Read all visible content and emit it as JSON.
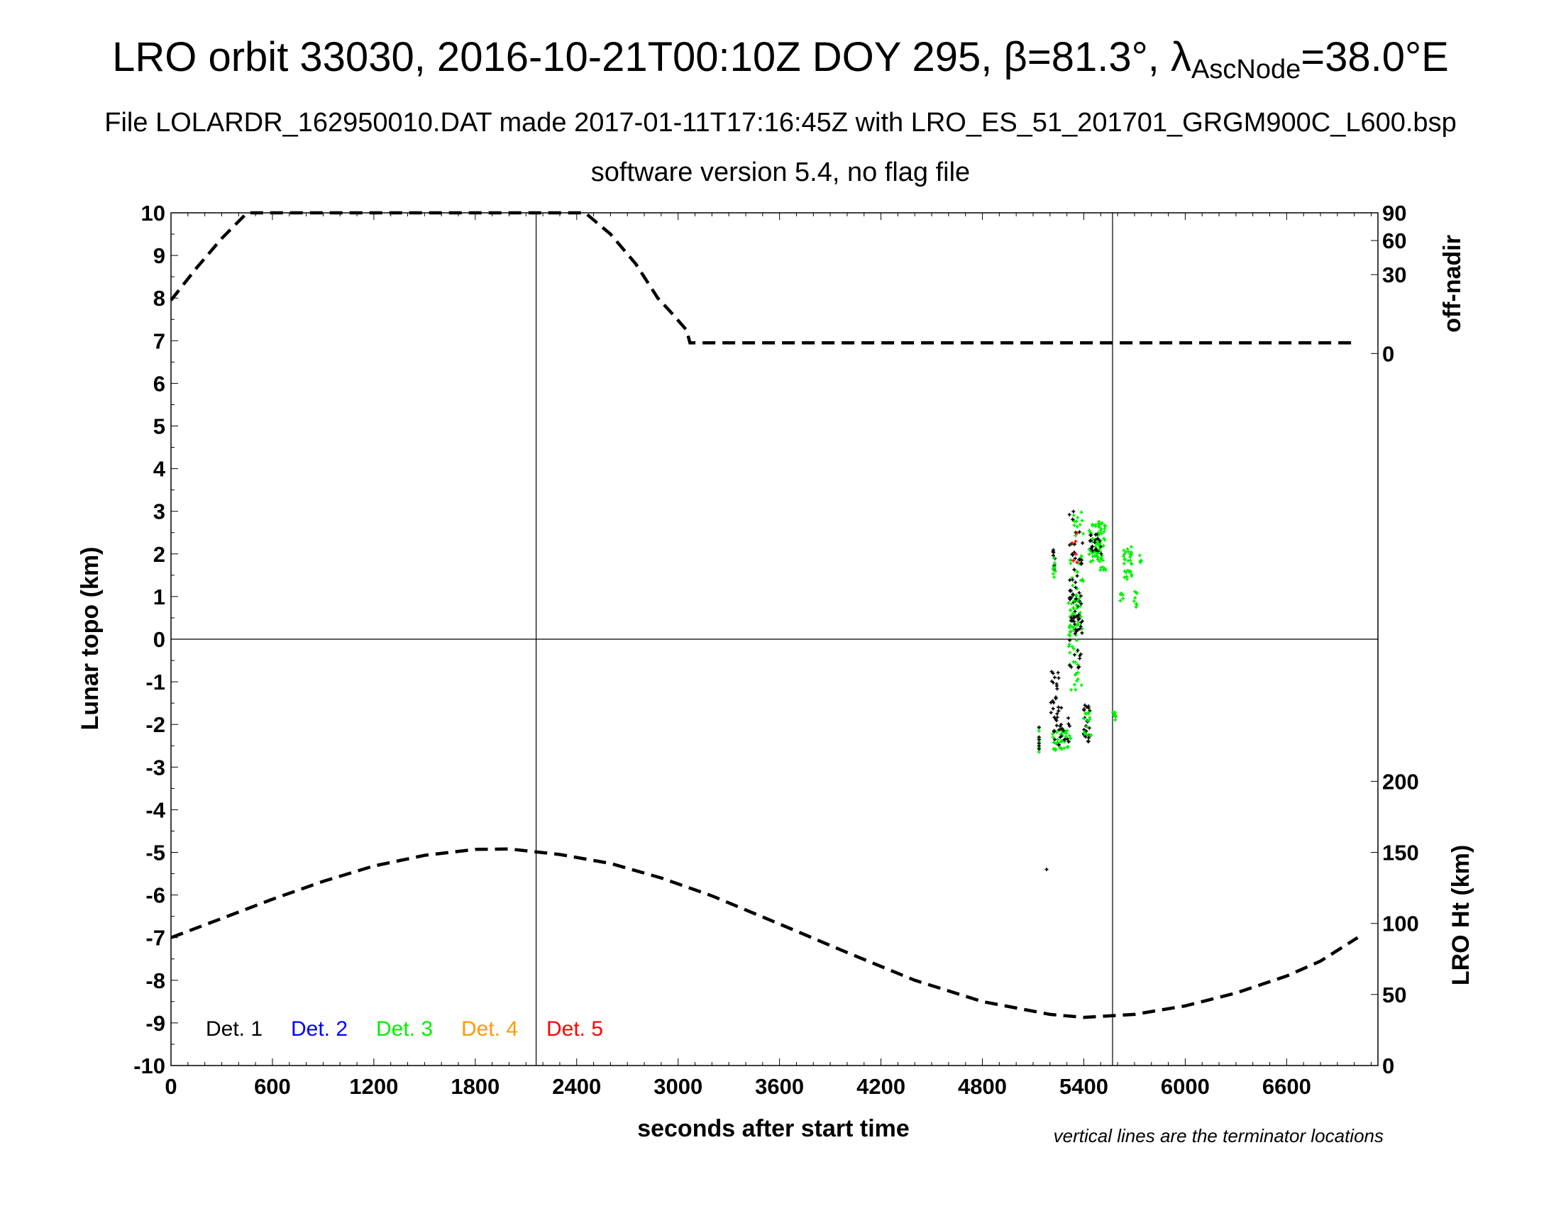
{
  "chart_data": {
    "type": "scatter",
    "title_prefix": "LRO orbit 33030, 2016-10-21T00:10Z DOY 295, ",
    "title_beta": "β=81.3°, ",
    "title_lambda": "λ",
    "title_lambda_sub": "AscNode",
    "title_lambda_value": "=38.0°E",
    "subtitle_1": "File LOLARDR_162950010.DAT made 2017-01-11T17:16:45Z with LRO_ES_51_201701_GRGM900C_L600.bsp",
    "subtitle_2": "software version 5.4, no flag file",
    "xlabel": "seconds after start time",
    "ylabel_left": "Lunar topo (km)",
    "ylabel_right_top": "off-nadir",
    "ylabel_right_bottom": "LRO Ht (km)",
    "note": "vertical lines are the terminator locations",
    "xlim": [
      0,
      7140
    ],
    "ylim": [
      -10,
      10
    ],
    "x_ticks": [
      "0",
      "600",
      "1200",
      "1800",
      "2400",
      "3000",
      "3600",
      "4200",
      "4800",
      "5400",
      "6000",
      "6600"
    ],
    "y_ticks": [
      "-10",
      "-9",
      "-8",
      "-7",
      "-6",
      "-5",
      "-4",
      "-3",
      "-2",
      "-1",
      "0",
      "1",
      "2",
      "3",
      "4",
      "5",
      "6",
      "7",
      "8",
      "9",
      "10"
    ],
    "off_nadir_ticks": [
      {
        "label": "90",
        "value": 90
      },
      {
        "label": "60",
        "value": 60
      },
      {
        "label": "30",
        "value": 30
      },
      {
        "label": "0",
        "value": 0
      }
    ],
    "lro_ht_ticks": [
      {
        "label": "200",
        "value": 200
      },
      {
        "label": "150",
        "value": 150
      },
      {
        "label": "100",
        "value": 100
      },
      {
        "label": "50",
        "value": 50
      },
      {
        "label": "0",
        "value": 0
      }
    ],
    "terminator_x": [
      2160,
      5570
    ],
    "legend": [
      {
        "label": "Det. 1",
        "color": "#000000"
      },
      {
        "label": "Det. 2",
        "color": "#0000ff"
      },
      {
        "label": "Det. 3",
        "color": "#00ee00"
      },
      {
        "label": "Det. 4",
        "color": "#ff9900"
      },
      {
        "label": "Det. 5",
        "color": "#ff0000"
      }
    ],
    "off_nadir_curve": [
      [
        0,
        7.95
      ],
      [
        150,
        8.7
      ],
      [
        300,
        9.4
      ],
      [
        450,
        10.0
      ],
      [
        2450,
        10.0
      ],
      [
        2600,
        9.5
      ],
      [
        2750,
        8.8
      ],
      [
        2880,
        8.0
      ],
      [
        2950,
        7.7
      ],
      [
        3050,
        7.25
      ],
      [
        3070,
        6.95
      ],
      [
        7020,
        6.95
      ]
    ],
    "lro_ht_curve": [
      [
        0,
        -7.0
      ],
      [
        300,
        -6.55
      ],
      [
        600,
        -6.1
      ],
      [
        900,
        -5.68
      ],
      [
        1200,
        -5.32
      ],
      [
        1500,
        -5.07
      ],
      [
        1800,
        -4.93
      ],
      [
        2000,
        -4.92
      ],
      [
        2300,
        -5.05
      ],
      [
        2600,
        -5.26
      ],
      [
        2900,
        -5.6
      ],
      [
        3200,
        -6.02
      ],
      [
        3600,
        -6.68
      ],
      [
        4000,
        -7.35
      ],
      [
        4400,
        -8.0
      ],
      [
        4800,
        -8.5
      ],
      [
        5200,
        -8.8
      ],
      [
        5400,
        -8.87
      ],
      [
        5700,
        -8.8
      ],
      [
        6000,
        -8.6
      ],
      [
        6300,
        -8.3
      ],
      [
        6600,
        -7.9
      ],
      [
        6800,
        -7.55
      ],
      [
        7020,
        -7.0
      ]
    ],
    "detections": {
      "clusters": [
        {
          "x": 5135,
          "x_spread": 0,
          "y_min": -2.7,
          "y_max": -2.0,
          "n": 10,
          "color": "#00ee00"
        },
        {
          "x": 5135,
          "x_spread": 0,
          "y_min": -2.6,
          "y_max": -2.05,
          "n": 6,
          "color": "#000000"
        },
        {
          "x": 5225,
          "x_spread": 8,
          "y_min": 1.5,
          "y_max": 2.1,
          "n": 10,
          "color": "#000000"
        },
        {
          "x": 5225,
          "x_spread": 8,
          "y_min": 1.4,
          "y_max": 2.0,
          "n": 8,
          "color": "#00ee00"
        },
        {
          "x": 5230,
          "x_spread": 25,
          "y_min": -1.9,
          "y_max": -0.75,
          "n": 20,
          "color": "#000000"
        },
        {
          "x": 5270,
          "x_spread": 55,
          "y_min": -2.6,
          "y_max": -2.1,
          "n": 40,
          "color": "#00ee00"
        },
        {
          "x": 5270,
          "x_spread": 50,
          "y_min": -2.5,
          "y_max": -1.6,
          "n": 25,
          "color": "#000000"
        },
        {
          "x": 5355,
          "x_spread": 45,
          "y_min": -1.2,
          "y_max": 3.0,
          "n": 70,
          "color": "#00ee00"
        },
        {
          "x": 5355,
          "x_spread": 40,
          "y_min": -0.7,
          "y_max": 3.0,
          "n": 55,
          "color": "#000000"
        },
        {
          "x": 5350,
          "x_spread": 35,
          "y_min": 0.3,
          "y_max": 1.1,
          "n": 25,
          "color": "#000000"
        },
        {
          "x": 5350,
          "x_spread": 35,
          "y_min": 0.2,
          "y_max": 1.0,
          "n": 20,
          "color": "#00ee00"
        },
        {
          "x": 5345,
          "x_spread": 15,
          "y_min": 1.8,
          "y_max": 2.5,
          "n": 6,
          "color": "#ff0000"
        },
        {
          "x": 5420,
          "x_spread": 25,
          "y_min": -2.4,
          "y_max": -1.5,
          "n": 22,
          "color": "#000000"
        },
        {
          "x": 5420,
          "x_spread": 25,
          "y_min": -2.3,
          "y_max": -1.7,
          "n": 14,
          "color": "#00ee00"
        },
        {
          "x": 5470,
          "x_spread": 40,
          "y_min": 1.8,
          "y_max": 2.7,
          "n": 45,
          "color": "#00ee00"
        },
        {
          "x": 5470,
          "x_spread": 35,
          "y_min": 2.0,
          "y_max": 2.5,
          "n": 20,
          "color": "#000000"
        },
        {
          "x": 5505,
          "x_spread": 25,
          "y_min": 1.6,
          "y_max": 2.8,
          "n": 30,
          "color": "#00ee00"
        },
        {
          "x": 5580,
          "x_spread": 8,
          "y_min": -1.9,
          "y_max": -1.7,
          "n": 8,
          "color": "#00ee00"
        },
        {
          "x": 5625,
          "x_spread": 12,
          "y_min": 0.9,
          "y_max": 1.1,
          "n": 6,
          "color": "#00ee00"
        },
        {
          "x": 5660,
          "x_spread": 25,
          "y_min": 1.4,
          "y_max": 2.2,
          "n": 30,
          "color": "#00ee00"
        },
        {
          "x": 5705,
          "x_spread": 10,
          "y_min": 0.7,
          "y_max": 1.2,
          "n": 8,
          "color": "#00ee00"
        },
        {
          "x": 5735,
          "x_spread": 6,
          "y_min": 1.8,
          "y_max": 2.0,
          "n": 4,
          "color": "#00ee00"
        },
        {
          "x": 5180,
          "x_spread": 0,
          "y_min": -5.4,
          "y_max": -5.4,
          "n": 1,
          "color": "#000000"
        }
      ]
    }
  }
}
